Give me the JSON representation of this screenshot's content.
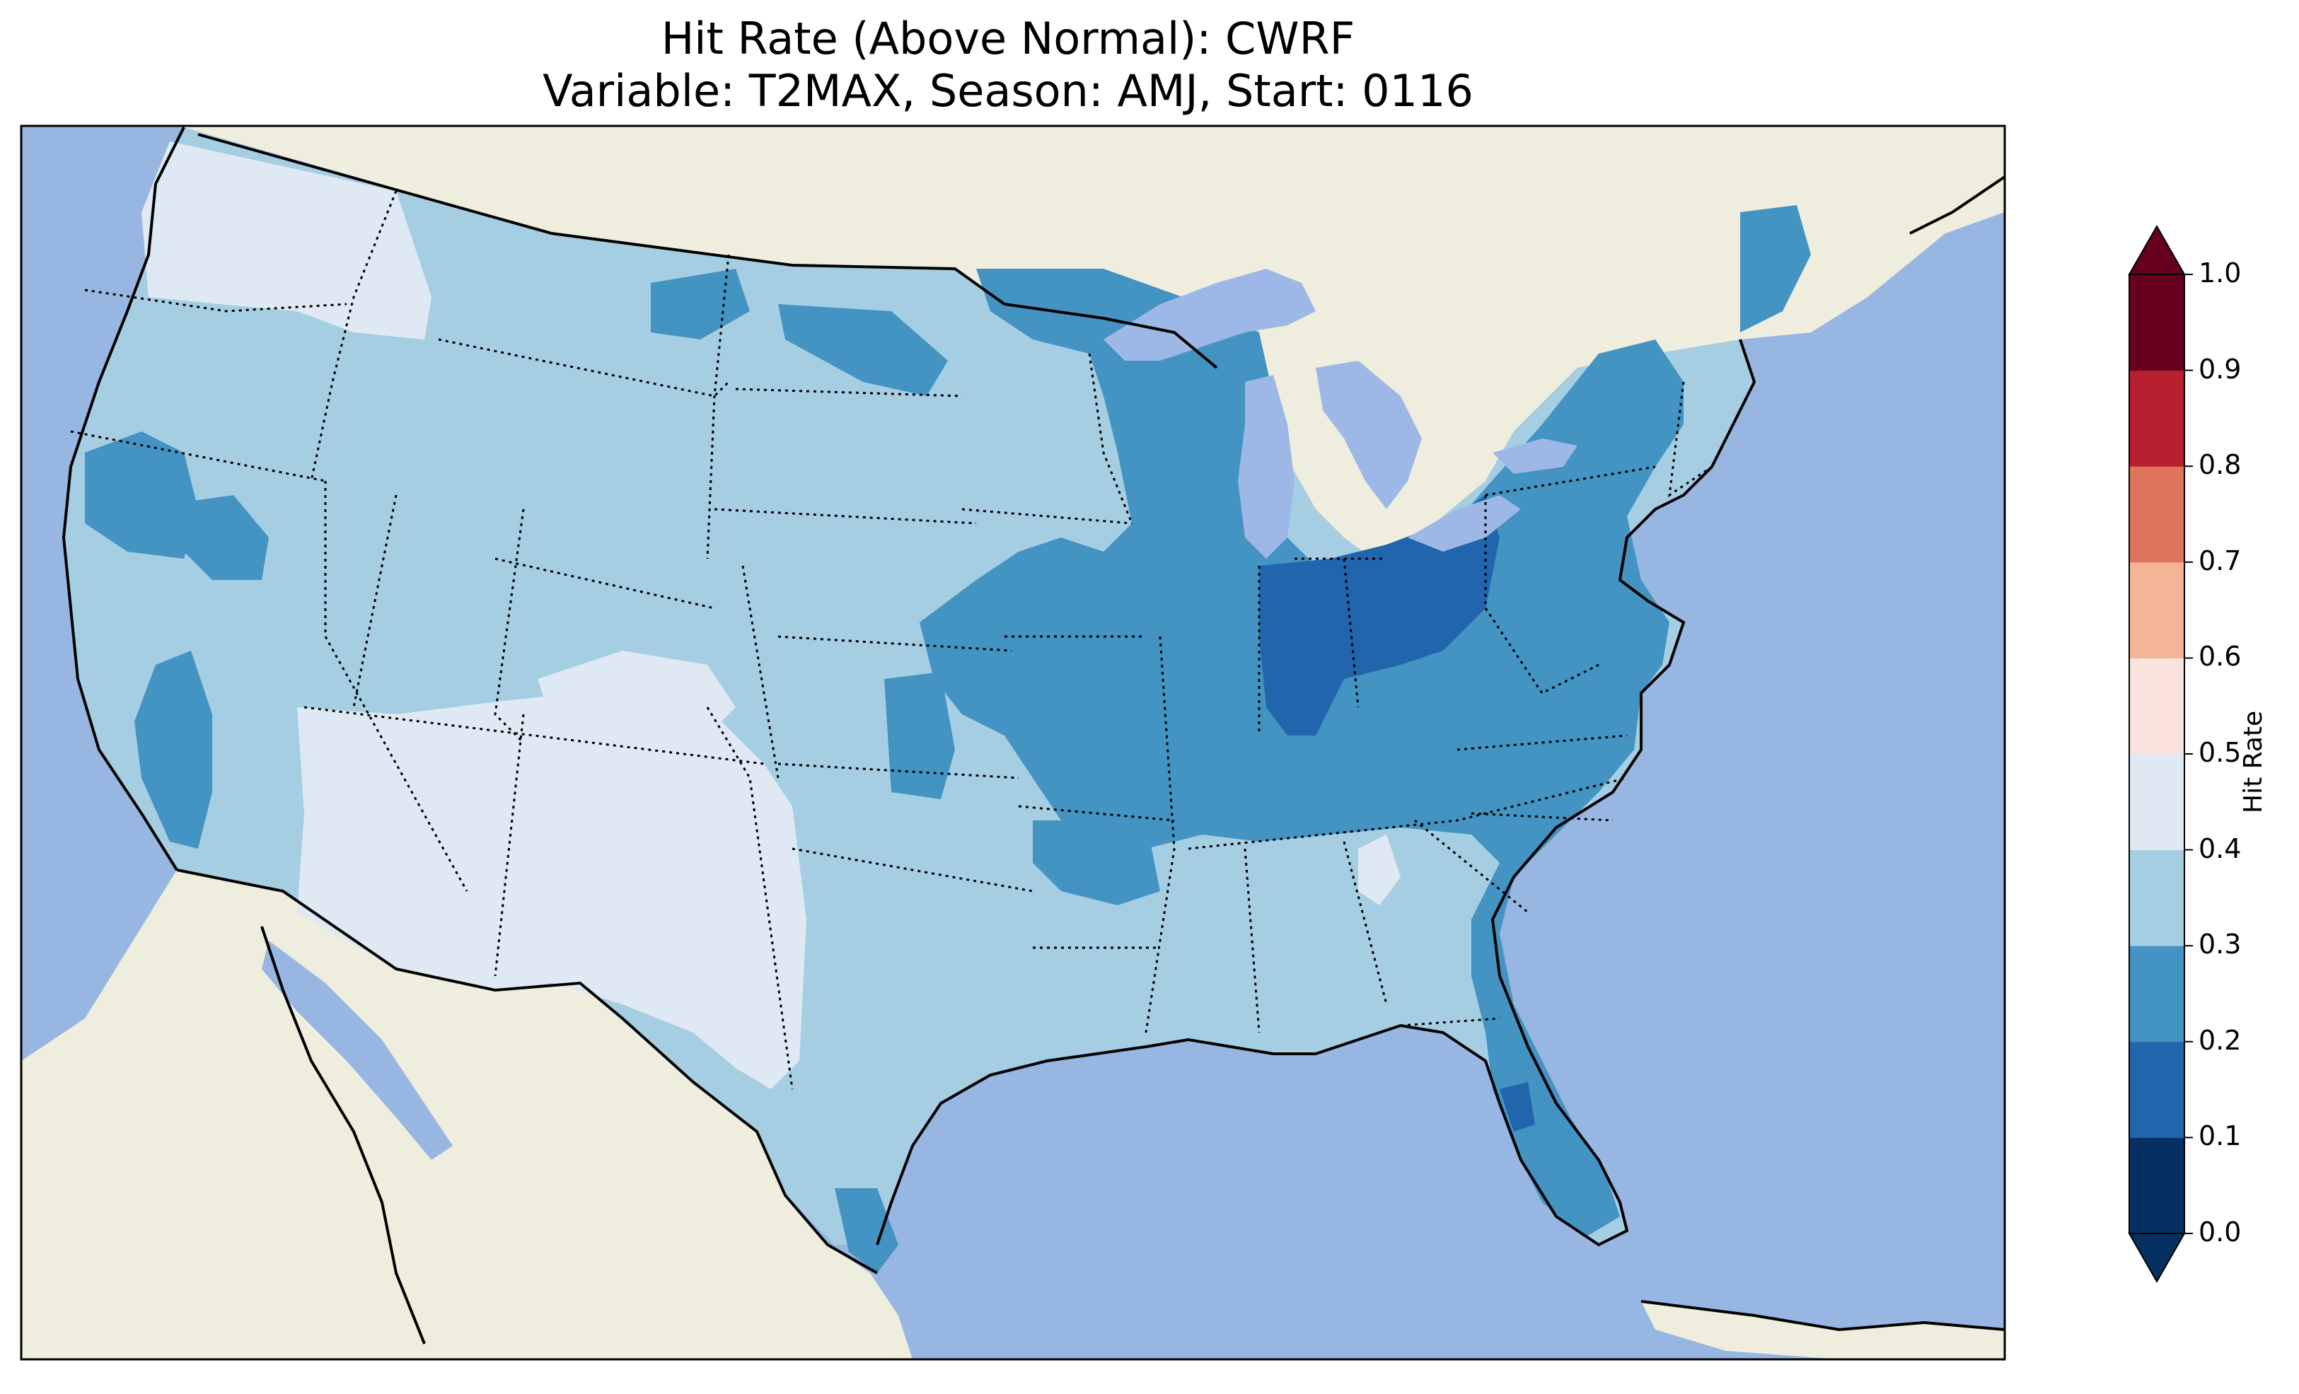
{
  "title": {
    "line1": "Hit Rate (Above Normal): CWRF",
    "line2": "Variable: T2MAX, Season: AMJ, Start: 0116"
  },
  "colors": {
    "ocean": "#97b6e1",
    "land": "#efedde",
    "lake": "#9db8e6",
    "border": "#000000"
  },
  "colorbar": {
    "label": "Hit Rate",
    "ticks": [
      "0.0",
      "0.1",
      "0.2",
      "0.3",
      "0.4",
      "0.5",
      "0.6",
      "0.7",
      "0.8",
      "0.9",
      "1.0"
    ],
    "bins": [
      {
        "range": "0.0-0.1",
        "color": "#053061"
      },
      {
        "range": "0.1-0.2",
        "color": "#2166ac"
      },
      {
        "range": "0.2-0.3",
        "color": "#4393c3"
      },
      {
        "range": "0.3-0.4",
        "color": "#a6cee3"
      },
      {
        "range": "0.4-0.5",
        "color": "#dfe9f3"
      },
      {
        "range": "0.5-0.6",
        "color": "#f9e3dc"
      },
      {
        "range": "0.6-0.7",
        "color": "#f4b597"
      },
      {
        "range": "0.7-0.8",
        "color": "#de745c"
      },
      {
        "range": "0.8-0.9",
        "color": "#b6202f"
      },
      {
        "range": "0.9-1.0",
        "color": "#67001f"
      }
    ],
    "extend": "both"
  },
  "map_regions": [
    {
      "name": "pacific-northwest",
      "level": "0.4-0.5"
    },
    {
      "name": "west-interior",
      "level": "0.3-0.4"
    },
    {
      "name": "southwest-desert",
      "level": "0.4-0.5"
    },
    {
      "name": "california-valley",
      "level": "0.2-0.3"
    },
    {
      "name": "northern-plains-patches",
      "level": "0.2-0.3"
    },
    {
      "name": "midwest-ohio-valley",
      "level": "0.1-0.2"
    },
    {
      "name": "midwest-surround",
      "level": "0.2-0.3"
    },
    {
      "name": "northeast",
      "level": "0.2-0.3"
    },
    {
      "name": "southeast",
      "level": "0.3-0.4"
    },
    {
      "name": "florida",
      "level": "0.2-0.3"
    },
    {
      "name": "texas",
      "level": "0.3-0.4"
    }
  ]
}
